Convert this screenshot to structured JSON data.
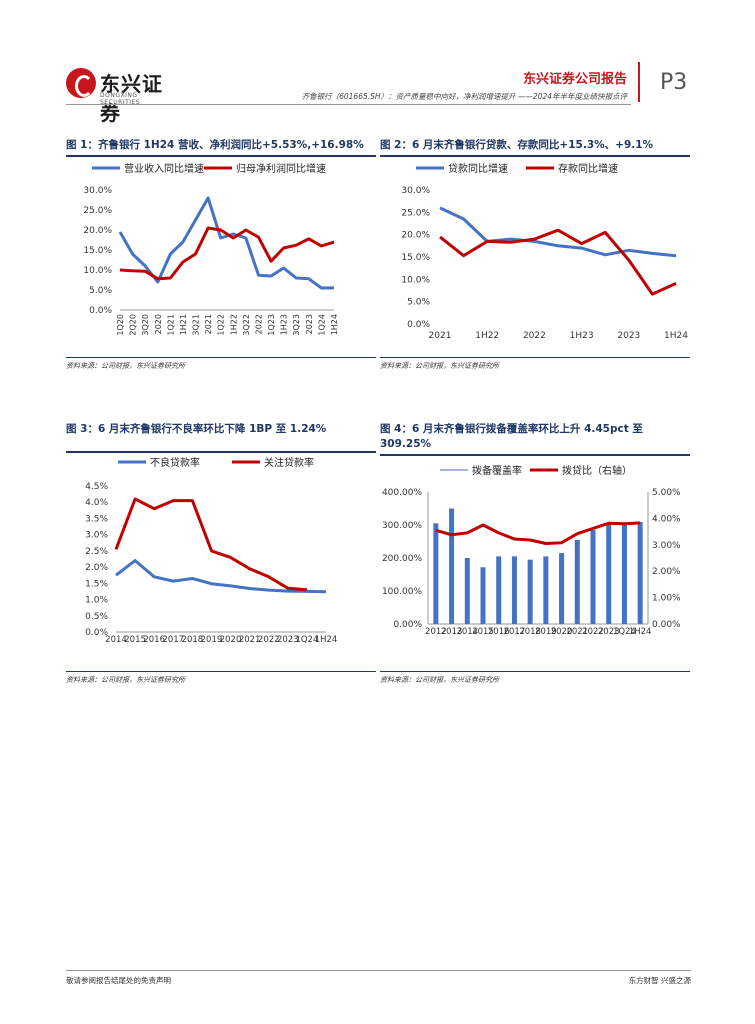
{
  "header": {
    "brand": "东兴证券",
    "brand_en": "DONGXING SECURITIES",
    "report_type": "东兴证券公司报告",
    "subtitle": "齐鲁银行（601665.SH）：资产质量稳中向好，净利润增速提升 ——2024年半年度业绩快报点评",
    "page": "P3"
  },
  "colors": {
    "blue": "#4472c4",
    "red": "#c00000",
    "navy": "#1f3864",
    "brand": "#c8161d"
  },
  "source_text": "资料来源：公司财报，东兴证券研究所",
  "footer": {
    "left": "敬请参阅报告结尾处的免责声明",
    "right": "东方财智 兴盛之源"
  },
  "figures": [
    {
      "title": "图 1：齐鲁银行 1H24 营收、净利润同比+5.53%,+16.98%"
    },
    {
      "title": "图 2：6 月末齐鲁银行贷款、存款同比+15.3%、+9.1%"
    },
    {
      "title": "图 3：6 月末齐鲁银行不良率环比下降 1BP 至 1.24%"
    },
    {
      "title": "图 4：6 月末齐鲁银行拨备覆盖率环比上升 4.45pct 至",
      "title2": "309.25%"
    }
  ],
  "chart_data": [
    {
      "type": "line",
      "x": [
        "1Q20",
        "2Q20",
        "3Q20",
        "2020",
        "1Q21",
        "1H21",
        "3Q21",
        "2021",
        "1Q22",
        "1H22",
        "3Q22",
        "2022",
        "1Q23",
        "1H23",
        "3Q23",
        "2023",
        "1Q24",
        "1H24"
      ],
      "series": [
        {
          "name": "营业收入同比增速",
          "values": [
            19.5,
            14,
            11,
            7,
            14,
            17,
            22.5,
            28,
            18,
            19,
            18,
            8.7,
            8.5,
            10.5,
            8,
            7.8,
            5.5,
            5.53
          ]
        },
        {
          "name": "归母净利润同比增速",
          "values": [
            10,
            9.8,
            9.7,
            7.8,
            8,
            12,
            14,
            20.5,
            20,
            18,
            20,
            18.2,
            12.2,
            15.5,
            16.2,
            17.8,
            16,
            16.98
          ]
        }
      ],
      "ylim": [
        0,
        30
      ],
      "yticks": [
        "0.0%",
        "5.0%",
        "10.0%",
        "15.0%",
        "20.0%",
        "25.0%",
        "30.0%"
      ]
    },
    {
      "type": "line",
      "x_labels": [
        "2021",
        "1H22",
        "2022",
        "1H23",
        "2023",
        "1H24"
      ],
      "series": [
        {
          "name": "贷款同比增速",
          "values": [
            26,
            23.5,
            18.5,
            19,
            18.5,
            17.5,
            17,
            15.5,
            16.5,
            15.8,
            15.3
          ]
        },
        {
          "name": "存款同比增速",
          "values": [
            19.5,
            15.3,
            18.5,
            18.3,
            19,
            21,
            18,
            20.5,
            14.3,
            6.7,
            9.1
          ]
        }
      ],
      "ylim": [
        0,
        30
      ],
      "yticks": [
        "0.0%",
        "5.0%",
        "10.0%",
        "15.0%",
        "20.0%",
        "25.0%",
        "30.0%"
      ]
    },
    {
      "type": "line",
      "x": [
        "2014",
        "2015",
        "2016",
        "2017",
        "2018",
        "2019",
        "2020",
        "2021",
        "2022",
        "2023",
        "1Q24",
        "1H24"
      ],
      "series": [
        {
          "name": "不良贷款率",
          "values": [
            1.75,
            2.2,
            1.7,
            1.57,
            1.65,
            1.49,
            1.42,
            1.34,
            1.29,
            1.26,
            1.25,
            1.24
          ]
        },
        {
          "name": "关注贷款率",
          "values": [
            2.55,
            4.1,
            3.8,
            4.05,
            4.05,
            2.5,
            2.3,
            1.95,
            1.7,
            1.35,
            1.3,
            null
          ]
        }
      ],
      "ylim": [
        0,
        4.5
      ],
      "yticks": [
        "0.0%",
        "0.5%",
        "1.0%",
        "1.5%",
        "2.0%",
        "2.5%",
        "3.0%",
        "3.5%",
        "4.0%",
        "4.5%"
      ]
    },
    {
      "type": "bar+line",
      "x": [
        "2012",
        "2013",
        "2014",
        "2015",
        "2016",
        "2017",
        "2018",
        "2019",
        "2020",
        "2021",
        "2022",
        "2023",
        "1Q24",
        "1H24"
      ],
      "series": [
        {
          "name": "拨备覆盖率",
          "type": "bar",
          "values": [
            305,
            350,
            200,
            172,
            205,
            205,
            195,
            205,
            215,
            255,
            285,
            305,
            305,
            309.25
          ]
        },
        {
          "name": "拨贷比（右轴）",
          "type": "line",
          "axis": "right",
          "values": [
            3.55,
            3.38,
            3.45,
            3.75,
            3.45,
            3.22,
            3.18,
            3.05,
            3.08,
            3.42,
            3.62,
            3.82,
            3.8,
            3.83
          ]
        }
      ],
      "ylim": [
        0,
        400
      ],
      "y2lim": [
        0,
        5
      ],
      "yticks": [
        "0.00%",
        "100.00%",
        "200.00%",
        "300.00%",
        "400.00%"
      ],
      "y2ticks": [
        "0.00%",
        "1.00%",
        "2.00%",
        "3.00%",
        "4.00%",
        "5.00%"
      ]
    }
  ]
}
